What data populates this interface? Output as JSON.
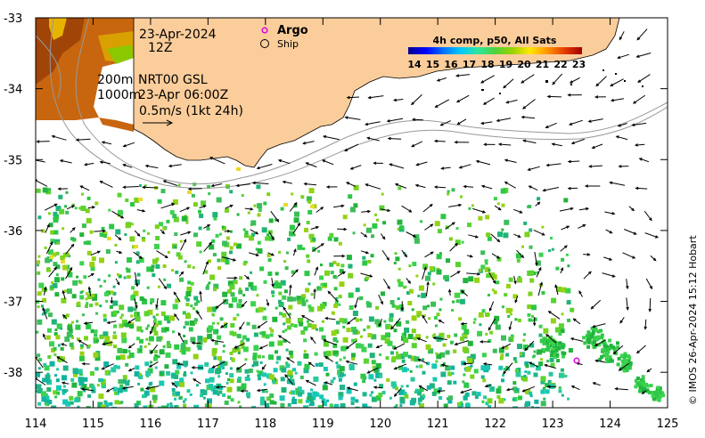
{
  "map": {
    "lon_range": [
      114,
      125
    ],
    "lat_range": [
      -38.5,
      -33
    ],
    "lon_ticks": [
      "114",
      "115",
      "116",
      "117",
      "118",
      "119",
      "120",
      "121",
      "122",
      "123",
      "124",
      "125"
    ],
    "lat_ticks": [
      "-33",
      "-34",
      "-35",
      "-36",
      "-37",
      "-38"
    ],
    "land_color": "#fbcd9b",
    "shelf_contours": [
      "200m",
      "1000m"
    ]
  },
  "annotations": {
    "date": "23-Apr-2024",
    "hour": "12Z",
    "argo_label": "Argo",
    "ship_label": "Ship",
    "isobaths": "200m",
    "isobath_2": "1000m",
    "product": "NRT00 GSL",
    "product_time": "23-Apr 06:00Z",
    "scale_label": "0.5m/s (1kt 24h)"
  },
  "colorbar": {
    "title": "4h comp, p50, All Sats",
    "ticks": [
      "14",
      "15",
      "16",
      "17",
      "18",
      "19",
      "20",
      "21",
      "22",
      "23"
    ],
    "colors": [
      "#00008f",
      "#0000ff",
      "#0070ff",
      "#00c8ff",
      "#2de6a0",
      "#4fd23c",
      "#9bd200",
      "#ffe600",
      "#ff9600",
      "#e63c00",
      "#a00000"
    ]
  },
  "credit": "© IMOS 26-Apr-2024 15:12 Hobart",
  "icons": {
    "argo": "argo-float-marker",
    "ship": "ship-marker"
  }
}
